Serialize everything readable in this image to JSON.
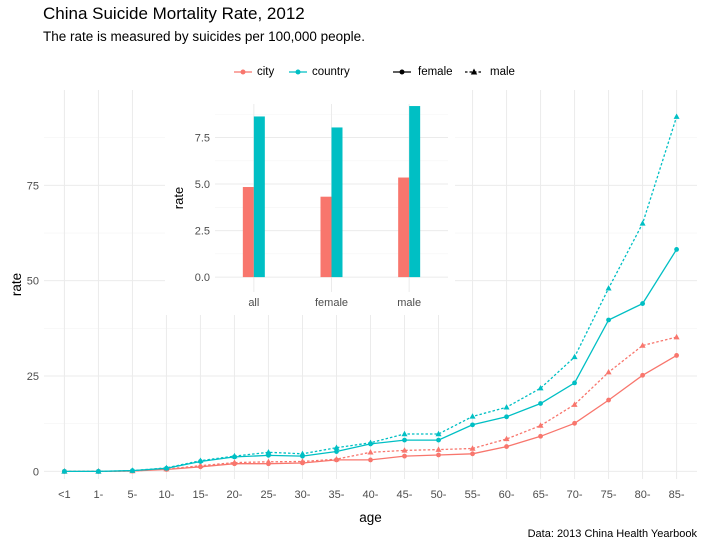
{
  "title": "China Suicide Mortality Rate, 2012",
  "subtitle": "The rate is measured by suicides per 100,000 people.",
  "caption": "Data: 2013 China Health Yearbook",
  "colors": {
    "city": "#F8766D",
    "country": "#00BFC4",
    "grid": "#ebebeb",
    "axis_text": "#4d4d4d"
  },
  "legend": {
    "area_title": "",
    "area_items": [
      "city",
      "country"
    ],
    "sex_title": "",
    "sex_items": [
      "female",
      "male"
    ]
  },
  "chart_data": [
    {
      "type": "line",
      "xlabel": "age",
      "ylabel": "rate",
      "x": [
        "<1",
        "1-",
        "5-",
        "10-",
        "15-",
        "20-",
        "25-",
        "30-",
        "35-",
        "40-",
        "45-",
        "50-",
        "55-",
        "60-",
        "65-",
        "70-",
        "75-",
        "80-",
        "85-"
      ],
      "ylim": [
        -2,
        100
      ],
      "yticks": [
        0,
        25,
        50,
        75
      ],
      "grid": true,
      "legend_position": "top",
      "series": [
        {
          "name": "city female",
          "area": "city",
          "sex": "female",
          "values": [
            0,
            0,
            0.1,
            0.5,
            1.2,
            2.0,
            2.0,
            2.2,
            3.0,
            3.0,
            4.0,
            4.3,
            4.6,
            6.5,
            9.2,
            12.6,
            18.7,
            25.2,
            30.4
          ]
        },
        {
          "name": "city male",
          "area": "city",
          "sex": "male",
          "values": [
            0,
            0,
            0.1,
            0.6,
            1.5,
            2.3,
            2.5,
            2.6,
            3.2,
            5.0,
            5.5,
            5.7,
            6.0,
            8.5,
            12.0,
            17.5,
            26.0,
            33.0,
            35.2
          ]
        },
        {
          "name": "country female",
          "area": "country",
          "sex": "female",
          "values": [
            0,
            0,
            0.2,
            0.8,
            2.6,
            3.8,
            4.2,
            4.0,
            5.2,
            7.2,
            8.2,
            8.2,
            12.2,
            14.3,
            17.8,
            23.2,
            39.7,
            44.0,
            58.2
          ]
        },
        {
          "name": "country male",
          "area": "country",
          "sex": "male",
          "values": [
            0,
            0,
            0.2,
            0.9,
            2.8,
            4.0,
            5.0,
            4.6,
            6.2,
            7.5,
            9.8,
            9.8,
            14.4,
            16.8,
            21.8,
            30.0,
            48.0,
            65.0,
            93.0
          ]
        }
      ]
    },
    {
      "type": "bar",
      "xlabel": "",
      "ylabel": "rate",
      "categories": [
        "all",
        "female",
        "male"
      ],
      "ylim": [
        -0.8,
        9.3
      ],
      "yticks": [
        0.0,
        2.5,
        5.0,
        7.5
      ],
      "ytick_labels": [
        "0.0",
        "2.5",
        "5.0",
        "7.5"
      ],
      "grid": true,
      "series": [
        {
          "name": "city",
          "values": [
            4.84,
            4.32,
            5.35
          ]
        },
        {
          "name": "country",
          "values": [
            8.63,
            8.04,
            9.19
          ]
        }
      ]
    }
  ]
}
